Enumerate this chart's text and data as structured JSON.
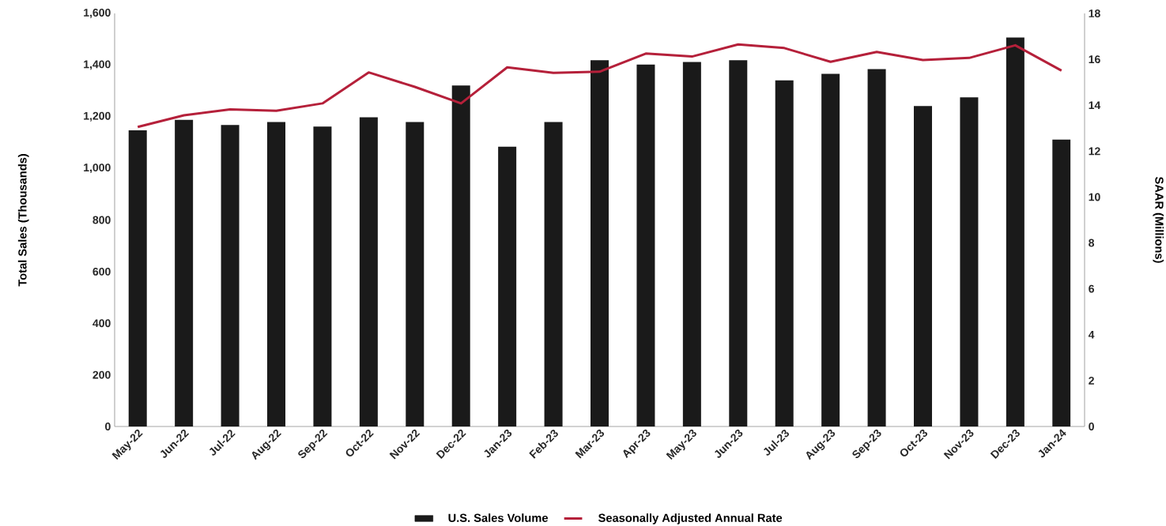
{
  "chart_data": {
    "type": "bar",
    "categories": [
      "May-22",
      "Jun-22",
      "Jul-22",
      "Aug-22",
      "Sep-22",
      "Oct-22",
      "Nov-22",
      "Dec-22",
      "Jan-23",
      "Feb-23",
      "Mar-23",
      "Apr-23",
      "May-23",
      "Jun-23",
      "Jul-23",
      "Aug-23",
      "Sep-23",
      "Oct-23",
      "Nov-23",
      "Dec-23",
      "Jan-24"
    ],
    "series": [
      {
        "name": "U.S. Sales Volume",
        "color": "#1a1a1a",
        "values": [
          1147,
          1188,
          1168,
          1179,
          1162,
          1198,
          1179,
          1321,
          1084,
          1179,
          1419,
          1402,
          1412,
          1419,
          1341,
          1366,
          1384,
          1241,
          1275,
          1507,
          1111
        ]
      },
      {
        "name": "Seasonally Adjusted Annual Rate",
        "type": "line",
        "axis": "y2",
        "color": "#b5203a",
        "values": [
          13.05,
          13.56,
          13.82,
          13.76,
          14.08,
          15.43,
          14.8,
          14.08,
          15.65,
          15.41,
          15.46,
          16.25,
          16.12,
          16.65,
          16.49,
          15.89,
          16.32,
          15.97,
          16.06,
          16.61,
          15.51
        ]
      }
    ],
    "ylabel": "Total Sales (Thousands)",
    "y2label": "SAAR (Millions)",
    "ylim": [
      0,
      1600
    ],
    "yticks": [
      0,
      200,
      400,
      600,
      800,
      {
        "value": 1000,
        "label": "1,000"
      },
      {
        "value": 1200,
        "label": "1,200"
      },
      {
        "value": 1400,
        "label": "1,400"
      },
      {
        "value": 1600,
        "label": "1,600"
      }
    ],
    "y2lim": [
      0,
      18
    ],
    "y2ticks": [
      0,
      2,
      4,
      6,
      8,
      10,
      12,
      14,
      16,
      18
    ],
    "legend": "bottom"
  }
}
